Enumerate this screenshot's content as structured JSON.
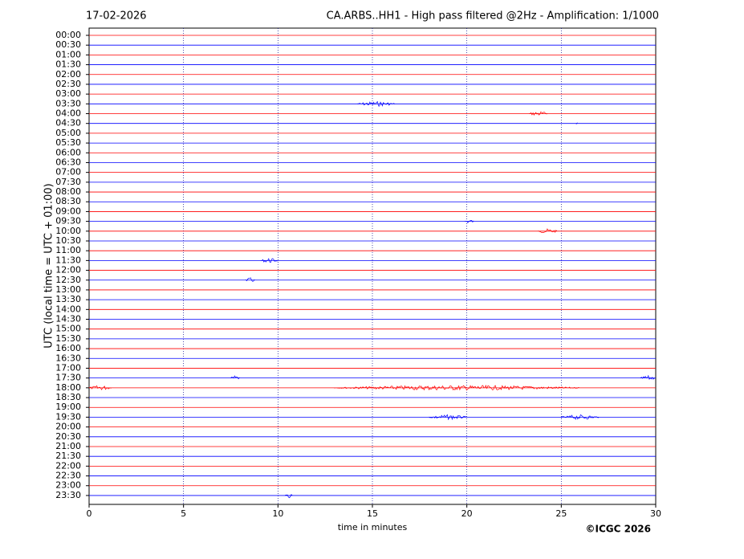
{
  "chart_data": {
    "type": "helicorder",
    "date": "17-02-2026",
    "title": "CA.ARBS..HH1 - High pass filtered @2Hz - Amplification: 1/1000",
    "ylabel": "UTC (local time = UTC + 01:00)",
    "xlabel": "time in minutes",
    "copyright": "©ICGC 2026",
    "rows": [
      "00:00",
      "00:30",
      "01:00",
      "01:30",
      "02:00",
      "02:30",
      "03:00",
      "03:30",
      "04:00",
      "04:30",
      "05:00",
      "05:30",
      "06:00",
      "06:30",
      "07:00",
      "07:30",
      "08:00",
      "08:30",
      "09:00",
      "09:30",
      "10:00",
      "10:30",
      "11:00",
      "11:30",
      "12:00",
      "12:30",
      "13:00",
      "13:30",
      "14:00",
      "14:30",
      "15:00",
      "15:30",
      "16:00",
      "16:30",
      "17:00",
      "17:30",
      "18:00",
      "18:30",
      "19:00",
      "19:30",
      "20:00",
      "20:30",
      "21:00",
      "21:30",
      "22:00",
      "22:30",
      "23:00",
      "23:30"
    ],
    "row_colors": [
      "#ff0000",
      "#0000ff"
    ],
    "xlim": [
      0,
      30
    ],
    "xticks": [
      0,
      5,
      10,
      15,
      20,
      25,
      30
    ],
    "grid": true,
    "events": [
      {
        "row": 7,
        "start": 14.2,
        "end": 16.2
      },
      {
        "row": 8,
        "start": 23.3,
        "end": 24.3
      },
      {
        "row": 9,
        "start": 25.8,
        "end": 25.9
      },
      {
        "row": 19,
        "start": 19.9,
        "end": 20.4
      },
      {
        "row": 20,
        "start": 23.8,
        "end": 24.8
      },
      {
        "row": 23,
        "start": 9.1,
        "end": 10.0
      },
      {
        "row": 25,
        "start": 8.3,
        "end": 8.8
      },
      {
        "row": 35,
        "start": 7.5,
        "end": 8.0
      },
      {
        "row": 35,
        "start": 29.2,
        "end": 30
      },
      {
        "row": 36,
        "start": 0,
        "end": 1.2
      },
      {
        "row": 36,
        "start": 13,
        "end": 26
      },
      {
        "row": 39,
        "start": 18,
        "end": 20
      },
      {
        "row": 39,
        "start": 25,
        "end": 27
      },
      {
        "row": 47,
        "start": 10.4,
        "end": 10.8
      }
    ]
  }
}
